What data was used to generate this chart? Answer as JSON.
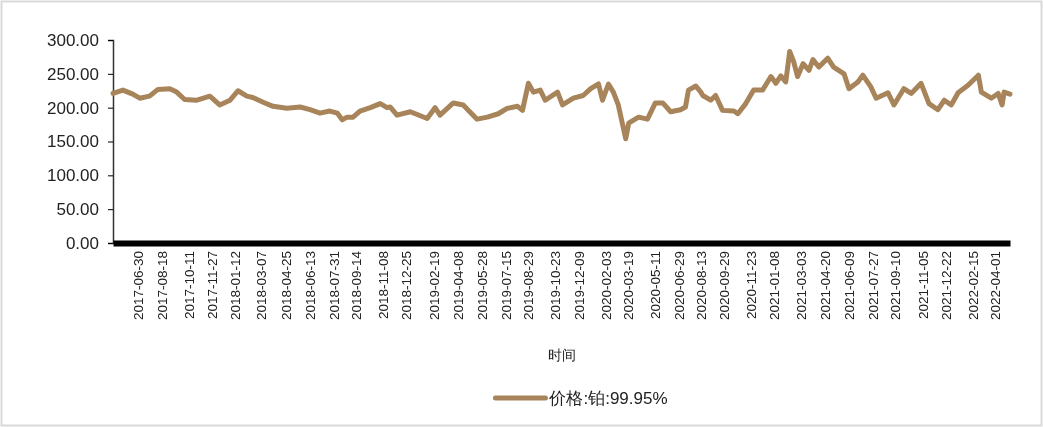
{
  "chart_data": {
    "type": "line",
    "xlabel": "时间",
    "legend": "bottom",
    "xlim": [
      "2017-05-11",
      "2022-05-01"
    ],
    "xticks": [
      "2017-06-30",
      "2017-08-18",
      "2017-10-11",
      "2017-11-27",
      "2018-01-12",
      "2018-03-07",
      "2018-04-25",
      "2018-06-13",
      "2018-07-31",
      "2018-09-14",
      "2018-11-08",
      "2018-12-25",
      "2019-02-19",
      "2019-04-08",
      "2019-05-28",
      "2019-07-15",
      "2019-08-29",
      "2019-10-23",
      "2019-12-09",
      "2020-02-03",
      "2020-03-19",
      "2020-05-11",
      "2020-06-29",
      "2020-08-13",
      "2020-09-29",
      "2020-11-23",
      "2021-01-08",
      "2021-03-03",
      "2021-04-20",
      "2021-06-09",
      "2021-07-27",
      "2021-09-10",
      "2021-11-05",
      "2021-12-22",
      "2022-02-15",
      "2022-04-01"
    ],
    "ylim": [
      0,
      300
    ],
    "yticks": [
      {
        "value": 0,
        "label": "0.00"
      },
      {
        "value": 50,
        "label": "50.00"
      },
      {
        "value": 100,
        "label": "100.00"
      },
      {
        "value": 150,
        "label": "150.00"
      },
      {
        "value": 200,
        "label": "200.00"
      },
      {
        "value": 250,
        "label": "250.00"
      },
      {
        "value": 300,
        "label": "300.00"
      }
    ],
    "series": [
      {
        "name": "价格:铂:99.95%",
        "color": "#a8845a",
        "x": [
          "2017-05-11",
          "2017-05-31",
          "2017-06-20",
          "2017-07-04",
          "2017-07-24",
          "2017-08-10",
          "2017-09-03",
          "2017-09-17",
          "2017-10-03",
          "2017-10-28",
          "2017-11-23",
          "2017-12-13",
          "2018-01-03",
          "2018-01-19",
          "2018-02-06",
          "2018-02-18",
          "2018-03-11",
          "2018-03-31",
          "2018-04-28",
          "2018-05-25",
          "2018-06-14",
          "2018-07-04",
          "2018-07-24",
          "2018-08-08",
          "2018-08-18",
          "2018-08-28",
          "2018-09-09",
          "2018-09-23",
          "2018-10-14",
          "2018-11-03",
          "2018-11-17",
          "2018-11-23",
          "2018-12-07",
          "2019-01-03",
          "2019-02-06",
          "2019-02-22",
          "2019-03-04",
          "2019-03-31",
          "2019-04-20",
          "2019-05-18",
          "2019-06-08",
          "2019-06-30",
          "2019-07-18",
          "2019-08-08",
          "2019-08-18",
          "2019-08-30",
          "2019-09-09",
          "2019-09-23",
          "2019-10-03",
          "2019-10-28",
          "2019-11-07",
          "2019-11-29",
          "2019-12-19",
          "2020-01-03",
          "2020-01-19",
          "2020-01-27",
          "2020-02-08",
          "2020-02-18",
          "2020-02-28",
          "2020-03-14",
          "2020-03-20",
          "2020-04-09",
          "2020-04-27",
          "2020-05-13",
          "2020-05-28",
          "2020-06-13",
          "2020-07-03",
          "2020-07-13",
          "2020-07-19",
          "2020-08-03",
          "2020-08-13",
          "2020-08-17",
          "2020-09-02",
          "2020-09-12",
          "2020-09-26",
          "2020-10-19",
          "2020-10-27",
          "2020-11-12",
          "2020-11-28",
          "2020-12-16",
          "2021-01-02",
          "2021-01-12",
          "2021-01-22",
          "2021-02-01",
          "2021-02-09",
          "2021-02-17",
          "2021-02-25",
          "2021-03-08",
          "2021-03-20",
          "2021-03-28",
          "2021-04-09",
          "2021-04-27",
          "2021-05-09",
          "2021-05-30",
          "2021-06-09",
          "2021-06-27",
          "2021-07-07",
          "2021-07-23",
          "2021-08-03",
          "2021-08-27",
          "2021-09-08",
          "2021-09-28",
          "2021-10-13",
          "2021-11-02",
          "2021-11-18",
          "2021-12-06",
          "2021-12-19",
          "2022-01-02",
          "2022-01-16",
          "2022-02-05",
          "2022-02-26",
          "2022-03-04",
          "2022-03-24",
          "2022-04-07",
          "2022-04-15",
          "2022-04-19",
          "2022-05-01"
        ],
        "values": [
          221,
          226,
          220,
          214,
          217,
          227,
          228,
          223,
          212,
          211,
          217,
          204,
          211,
          225,
          217,
          215,
          208,
          202,
          199,
          201,
          197,
          192,
          195,
          192,
          182,
          186,
          186,
          195,
          200,
          206,
          200,
          201,
          189,
          194,
          184,
          200,
          189,
          207,
          204,
          183,
          186,
          191,
          199,
          202,
          196,
          236,
          223,
          226,
          211,
          223,
          204,
          214,
          218,
          228,
          235,
          211,
          235,
          223,
          204,
          154,
          177,
          186,
          183,
          207,
          207,
          194,
          197,
          201,
          226,
          232,
          223,
          218,
          211,
          218,
          196,
          195,
          191,
          206,
          226,
          226,
          246,
          236,
          247,
          238,
          283,
          268,
          246,
          265,
          255,
          271,
          260,
          273,
          260,
          250,
          228,
          238,
          248,
          231,
          214,
          222,
          204,
          228,
          221,
          236,
          206,
          197,
          211,
          204,
          222,
          233,
          248,
          223,
          214,
          221,
          204,
          223,
          220
        ]
      }
    ]
  }
}
